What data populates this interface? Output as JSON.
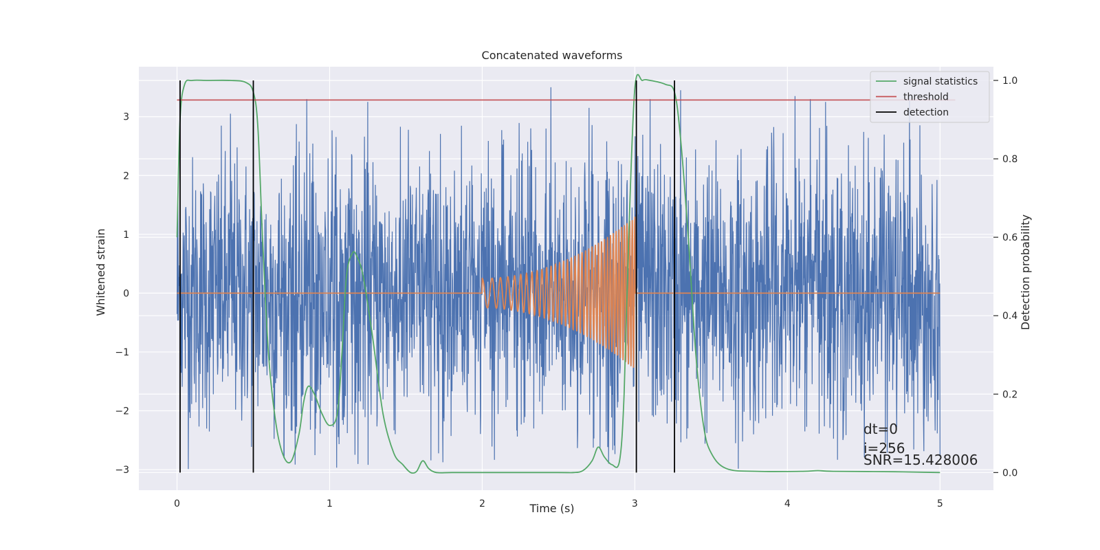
{
  "chart_data": {
    "type": "line",
    "title": "Concatenated waveforms",
    "xlabel": "Time (s)",
    "ylabel": "Whitened strain",
    "y2label": "Detection probability",
    "xlim": [
      -0.25,
      5.35
    ],
    "ylim": [
      -3.35,
      3.85
    ],
    "y2lim": [
      -0.045,
      1.035
    ],
    "xticks": [
      0,
      1,
      2,
      3,
      4,
      5
    ],
    "yticks": [
      -3,
      -2,
      -1,
      0,
      1,
      2,
      3
    ],
    "y2ticks": [
      0.0,
      0.2,
      0.4,
      0.6,
      0.8,
      1.0
    ],
    "xtick_labels": [
      "0",
      "1",
      "2",
      "3",
      "4",
      "5"
    ],
    "ytick_labels": [
      "−3",
      "−2",
      "−1",
      "0",
      "1",
      "2",
      "3"
    ],
    "y2tick_labels": [
      "0.0",
      "0.2",
      "0.4",
      "0.6",
      "0.8",
      "1.0"
    ],
    "grid": true,
    "legend_position": "top-right",
    "colors": {
      "background": "#eaeaf2",
      "strain": "#4c72b0",
      "injected_signal": "#dd8452",
      "signal_statistics": "#55a868",
      "threshold": "#c44e52",
      "detection": "#000000"
    },
    "legend": [
      {
        "label": "signal statistics",
        "color": "#55a868"
      },
      {
        "label": "threshold",
        "color": "#c44e52"
      },
      {
        "label": "detection",
        "color": "#000000"
      }
    ],
    "series": [
      {
        "name": "signal statistics",
        "axis": "right",
        "x": [
          0,
          0.02,
          0.05,
          0.1,
          0.2,
          0.35,
          0.45,
          0.5,
          0.53,
          0.56,
          0.6,
          0.65,
          0.7,
          0.75,
          0.8,
          0.83,
          0.86,
          0.9,
          0.95,
          1.0,
          1.05,
          1.08,
          1.11,
          1.15,
          1.18,
          1.22,
          1.28,
          1.35,
          1.42,
          1.48,
          1.53,
          1.57,
          1.61,
          1.65,
          1.7,
          1.8,
          2.0,
          2.5,
          2.6,
          2.66,
          2.72,
          2.76,
          2.8,
          2.85,
          2.9,
          2.93,
          2.96,
          3.0,
          3.05,
          3.1,
          3.2,
          3.26,
          3.3,
          3.35,
          3.4,
          3.45,
          3.5,
          3.6,
          3.8,
          4.1,
          4.2,
          4.3,
          4.7,
          5.0
        ],
        "y": [
          0.6,
          0.9,
          0.99,
          1.0,
          1.0,
          1.0,
          0.995,
          0.97,
          0.88,
          0.6,
          0.3,
          0.12,
          0.04,
          0.03,
          0.1,
          0.18,
          0.22,
          0.2,
          0.15,
          0.12,
          0.15,
          0.3,
          0.5,
          0.56,
          0.55,
          0.5,
          0.35,
          0.15,
          0.05,
          0.02,
          0.0,
          0.003,
          0.03,
          0.01,
          0.0,
          0.0,
          0.0,
          0.0,
          0.0,
          0.005,
          0.03,
          0.065,
          0.04,
          0.02,
          0.03,
          0.2,
          0.6,
          0.98,
          1.0,
          1.0,
          0.99,
          0.97,
          0.85,
          0.6,
          0.3,
          0.12,
          0.05,
          0.01,
          0.003,
          0.003,
          0.005,
          0.003,
          0.002,
          0.0
        ]
      },
      {
        "name": "threshold",
        "axis": "right",
        "x": [
          0,
          5.1
        ],
        "y": [
          0.95,
          0.95
        ]
      },
      {
        "name": "detection",
        "axis": "right",
        "x": [
          0.02,
          0.5,
          3.01,
          3.26
        ],
        "y_range": [
          0.0,
          1.0
        ]
      },
      {
        "name": "",
        "axis": "left",
        "noise_envelope_x": [
          0,
          0.5,
          1,
          2,
          3,
          4,
          5
        ],
        "noise_envelope_y": [
          1.2,
          1.2,
          1.2,
          1.2,
          1.2,
          1.2,
          1.2
        ],
        "spike_x": [
          0.35,
          0.5,
          0.85,
          1.25,
          2.45,
          2.7,
          3.1,
          3.3,
          4.05,
          4.15,
          4.25,
          4.8
        ],
        "spike_y": [
          3.05,
          3.2,
          3.3,
          3.25,
          3.5,
          3.15,
          3.3,
          3.45,
          3.35,
          3.3,
          3.25,
          3.35
        ]
      },
      {
        "name": "",
        "axis": "left",
        "chirp": {
          "t_start": 2.0,
          "t_end": 3.0,
          "amplitude_start": 0.25,
          "amplitude_end": 1.3,
          "frequency_start": 14,
          "frequency_end": 60
        },
        "flat_value": 0
      }
    ],
    "annotations": [
      "dt=0",
      "i=256",
      "SNR=15.428006"
    ]
  }
}
